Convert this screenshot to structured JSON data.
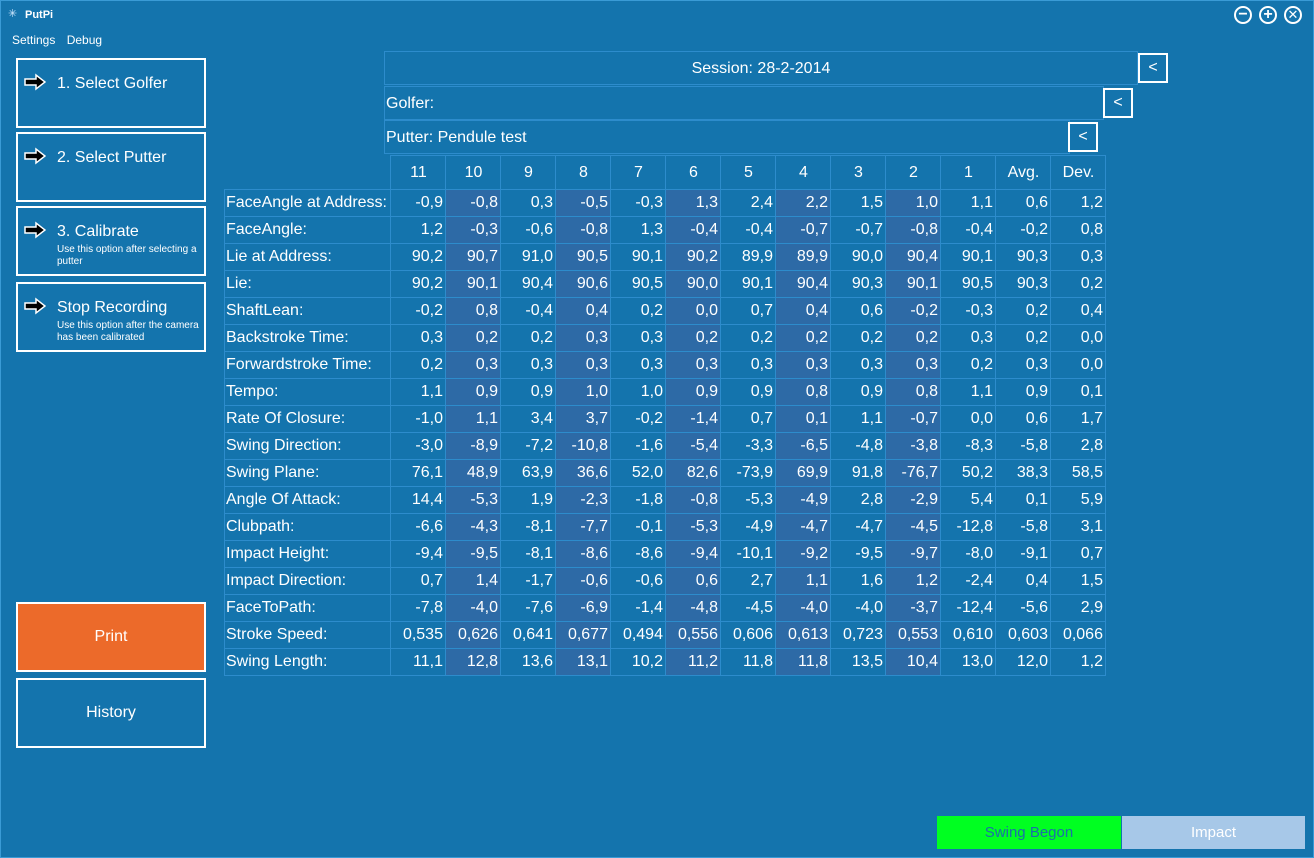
{
  "window": {
    "title": "PutPi"
  },
  "menu": [
    "Settings",
    "Debug"
  ],
  "sidebar": {
    "buttons": [
      {
        "label": "1. Select Golfer",
        "sub": ""
      },
      {
        "label": "2. Select Putter",
        "sub": ""
      },
      {
        "label": "3. Calibrate",
        "sub": "Use this option after selecting a putter"
      },
      {
        "label": "Stop Recording",
        "sub": "Use this option after the camera has been calibrated"
      }
    ],
    "print_label": "Print",
    "history_label": "History"
  },
  "header": {
    "session": "Session: 28-2-2014",
    "golfer": "Golfer:",
    "putter": "Putter: Pendule test",
    "back_label": "<"
  },
  "table": {
    "columns": [
      "11",
      "10",
      "9",
      "8",
      "7",
      "6",
      "5",
      "4",
      "3",
      "2",
      "1",
      "Avg.",
      "Dev."
    ],
    "highlight_columns": [
      1,
      3,
      5,
      7,
      9
    ],
    "rows": [
      {
        "label": "FaceAngle at Address:",
        "values": [
          "-0,9",
          "-0,8",
          "0,3",
          "-0,5",
          "-0,3",
          "1,3",
          "2,4",
          "2,2",
          "1,5",
          "1,0",
          "1,1",
          "0,6",
          "1,2"
        ]
      },
      {
        "label": "FaceAngle:",
        "values": [
          "1,2",
          "-0,3",
          "-0,6",
          "-0,8",
          "1,3",
          "-0,4",
          "-0,4",
          "-0,7",
          "-0,7",
          "-0,8",
          "-0,4",
          "-0,2",
          "0,8"
        ]
      },
      {
        "label": "Lie at Address:",
        "values": [
          "90,2",
          "90,7",
          "91,0",
          "90,5",
          "90,1",
          "90,2",
          "89,9",
          "89,9",
          "90,0",
          "90,4",
          "90,1",
          "90,3",
          "0,3"
        ]
      },
      {
        "label": "Lie:",
        "values": [
          "90,2",
          "90,1",
          "90,4",
          "90,6",
          "90,5",
          "90,0",
          "90,1",
          "90,4",
          "90,3",
          "90,1",
          "90,5",
          "90,3",
          "0,2"
        ]
      },
      {
        "label": "ShaftLean:",
        "values": [
          "-0,2",
          "0,8",
          "-0,4",
          "0,4",
          "0,2",
          "0,0",
          "0,7",
          "0,4",
          "0,6",
          "-0,2",
          "-0,3",
          "0,2",
          "0,4"
        ]
      },
      {
        "label": "Backstroke Time:",
        "values": [
          "0,3",
          "0,2",
          "0,2",
          "0,3",
          "0,3",
          "0,2",
          "0,2",
          "0,2",
          "0,2",
          "0,2",
          "0,3",
          "0,2",
          "0,0"
        ]
      },
      {
        "label": "Forwardstroke Time:",
        "values": [
          "0,2",
          "0,3",
          "0,3",
          "0,3",
          "0,3",
          "0,3",
          "0,3",
          "0,3",
          "0,3",
          "0,3",
          "0,2",
          "0,3",
          "0,0"
        ]
      },
      {
        "label": "Tempo:",
        "values": [
          "1,1",
          "0,9",
          "0,9",
          "1,0",
          "1,0",
          "0,9",
          "0,9",
          "0,8",
          "0,9",
          "0,8",
          "1,1",
          "0,9",
          "0,1"
        ]
      },
      {
        "label": "Rate Of Closure:",
        "values": [
          "-1,0",
          "1,1",
          "3,4",
          "3,7",
          "-0,2",
          "-1,4",
          "0,7",
          "0,1",
          "1,1",
          "-0,7",
          "0,0",
          "0,6",
          "1,7"
        ]
      },
      {
        "label": "Swing Direction:",
        "values": [
          "-3,0",
          "-8,9",
          "-7,2",
          "-10,8",
          "-1,6",
          "-5,4",
          "-3,3",
          "-6,5",
          "-4,8",
          "-3,8",
          "-8,3",
          "-5,8",
          "2,8"
        ]
      },
      {
        "label": "Swing Plane:",
        "values": [
          "76,1",
          "48,9",
          "63,9",
          "36,6",
          "52,0",
          "82,6",
          "-73,9",
          "69,9",
          "91,8",
          "-76,7",
          "50,2",
          "38,3",
          "58,5"
        ]
      },
      {
        "label": "Angle Of Attack:",
        "values": [
          "14,4",
          "-5,3",
          "1,9",
          "-2,3",
          "-1,8",
          "-0,8",
          "-5,3",
          "-4,9",
          "2,8",
          "-2,9",
          "5,4",
          "0,1",
          "5,9"
        ]
      },
      {
        "label": "Clubpath:",
        "values": [
          "-6,6",
          "-4,3",
          "-8,1",
          "-7,7",
          "-0,1",
          "-5,3",
          "-4,9",
          "-4,7",
          "-4,7",
          "-4,5",
          "-12,8",
          "-5,8",
          "3,1"
        ]
      },
      {
        "label": "Impact Height:",
        "values": [
          "-9,4",
          "-9,5",
          "-8,1",
          "-8,6",
          "-8,6",
          "-9,4",
          "-10,1",
          "-9,2",
          "-9,5",
          "-9,7",
          "-8,0",
          "-9,1",
          "0,7"
        ]
      },
      {
        "label": "Impact Direction:",
        "values": [
          "0,7",
          "1,4",
          "-1,7",
          "-0,6",
          "-0,6",
          "0,6",
          "2,7",
          "1,1",
          "1,6",
          "1,2",
          "-2,4",
          "0,4",
          "1,5"
        ]
      },
      {
        "label": "FaceToPath:",
        "values": [
          "-7,8",
          "-4,0",
          "-7,6",
          "-6,9",
          "-1,4",
          "-4,8",
          "-4,5",
          "-4,0",
          "-4,0",
          "-3,7",
          "-12,4",
          "-5,6",
          "2,9"
        ]
      },
      {
        "label": "Stroke Speed:",
        "values": [
          "0,535",
          "0,626",
          "0,641",
          "0,677",
          "0,494",
          "0,556",
          "0,606",
          "0,613",
          "0,723",
          "0,553",
          "0,610",
          "0,603",
          "0,066"
        ]
      },
      {
        "label": "Swing Length:",
        "values": [
          "11,1",
          "12,8",
          "13,6",
          "13,1",
          "10,2",
          "11,2",
          "11,8",
          "11,8",
          "13,5",
          "10,4",
          "13,0",
          "12,0",
          "1,2"
        ]
      }
    ]
  },
  "status": {
    "swing": "Swing Begon",
    "impact": "Impact",
    "swing_color": "#00ff21",
    "impact_color": "#a7c8e8"
  },
  "colors": {
    "background": "#1474ad",
    "highlight_column": "#2d6aa6",
    "print_button": "#ec6a2a"
  }
}
